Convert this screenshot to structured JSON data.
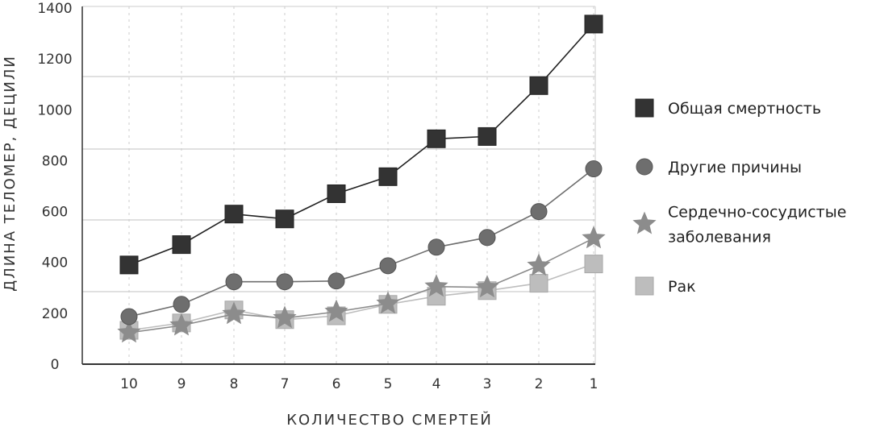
{
  "chart_data": {
    "type": "line",
    "title": "",
    "xlabel": "КОЛИЧЕСТВО СМЕРТЕЙ",
    "ylabel": "ДЛИНА ТЕЛОМЕР, ДЕЦИЛИ",
    "categories": [
      "10",
      "9",
      "8",
      "7",
      "6",
      "5",
      "4",
      "3",
      "2",
      "1"
    ],
    "ylim": [
      0,
      1400
    ],
    "yticks": [
      0,
      200,
      400,
      600,
      800,
      1000,
      1200,
      1400
    ],
    "grid": true,
    "legend_position": "right",
    "series": [
      {
        "name": "Общая смертность",
        "marker": "square",
        "color": "#333333",
        "values": [
          390,
          470,
          590,
          571,
          670,
          737,
          886,
          895,
          1095,
          1337
        ]
      },
      {
        "name": "Другие причины",
        "marker": "circle",
        "color": "#6e6e6e",
        "values": [
          187,
          235,
          324,
          324,
          327,
          387,
          460,
          498,
          600,
          768
        ]
      },
      {
        "name": "Сердечно-сосудистые заболевания",
        "name_lines": [
          "Сердечно-сосудистые",
          "заболевания"
        ],
        "marker": "star",
        "color": "#8c8c8c",
        "values": [
          124,
          152,
          197,
          181,
          206,
          238,
          305,
          302,
          387,
          495
        ]
      },
      {
        "name": "Рак",
        "marker": "square",
        "color": "#bdbdbd",
        "values": [
          133,
          162,
          213,
          175,
          190,
          235,
          267,
          289,
          318,
          394
        ]
      }
    ]
  }
}
